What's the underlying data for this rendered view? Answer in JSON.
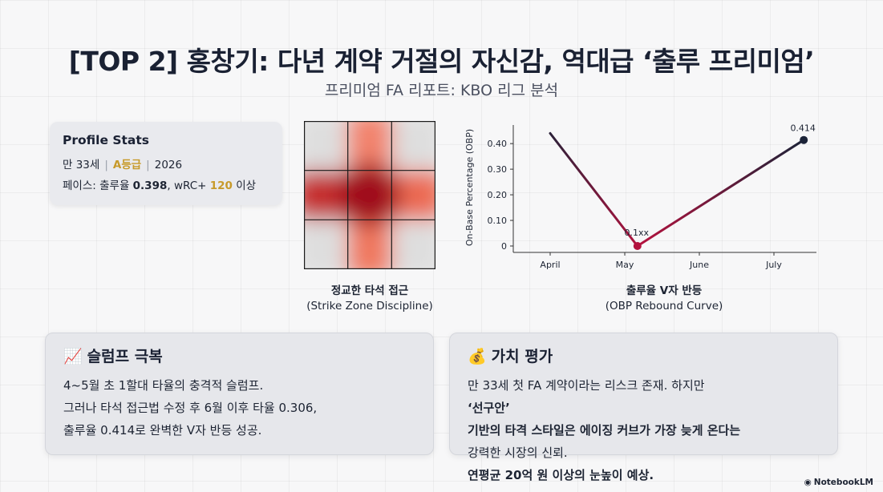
{
  "header": {
    "title": "[TOP 2] 홍창기: 다년 계약 거절의 자신감, 역대급 ‘출루 프리미엄’",
    "subtitle": "프리미엄 FA 리포트: KBO 리그 분석"
  },
  "profile": {
    "heading": "Profile Stats",
    "age": "만 33세",
    "grade": "A등급",
    "year": "2026",
    "pace_prefix": "페이스: 출루율 ",
    "obp": "0.398",
    "wrc_prefix": ", wRC+ ",
    "wrc": "120",
    "wrc_suffix": " 이상"
  },
  "heatmap": {
    "caption_ko": "정교한 타석 접근",
    "caption_en": "(Strike Zone Discipline)"
  },
  "chart_data": {
    "type": "line",
    "x": [
      "April",
      "May",
      "June",
      "July"
    ],
    "ylabel": "On-Base Percentage (OBP)",
    "yticks": [
      "0",
      "0.10",
      "0.20",
      "0.30",
      "0.40"
    ],
    "ylim": [
      0,
      0.46
    ],
    "series": [
      {
        "points": [
          {
            "x": 0,
            "y": 0.44
          },
          {
            "x": 1.17,
            "y": 0.0
          },
          {
            "x": 3.4,
            "y": 0.414
          }
        ]
      }
    ],
    "annotations": [
      {
        "text": "0.1xx"
      },
      {
        "text": "0.414"
      }
    ],
    "caption_ko": "출루율 V자 반등",
    "caption_en": "(OBP Rebound Curve)",
    "colors": {
      "start": "#1b2338",
      "low": "#b3123e",
      "end": "#1b2338"
    }
  },
  "cards": {
    "slump": {
      "icon": "chart-increasing-icon",
      "emoji": "📈",
      "title": "슬럼프 극복",
      "lines": [
        "4~5월 초 1할대 타율의 충격적 슬럼프.",
        "그러나 타석 접근법 수정 후 6월 이후 타율 0.306,",
        "출루율 0.414로 완벽한 V자 반등 성공."
      ]
    },
    "value": {
      "icon": "money-bag-icon",
      "emoji": "💰",
      "title": "가치 평가",
      "l1_a": "만 33세 첫 FA 계약이라는 리스크 존재. 하지만 ",
      "l1_b": "‘선구안’",
      "l2": "기반의 타격 스타일은 에이징 커브가 가장 늦게 온다는",
      "l3_a": "강력한 시장의 신뢰. ",
      "l3_b": "연평균 20억 원 이상의 눈높이 예상."
    }
  },
  "brand": {
    "name": "NotebookLM"
  }
}
